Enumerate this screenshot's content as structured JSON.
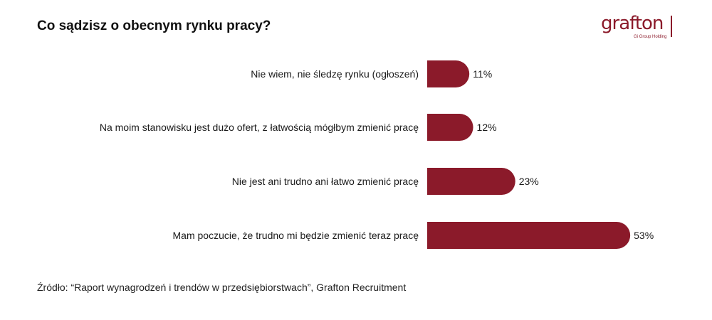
{
  "header": {
    "title": "Co sądzisz o obecnym rynku pracy?"
  },
  "logo": {
    "word": "grafton",
    "sub": "Gi Group Holding"
  },
  "colors": {
    "bar": "#8b1a2a",
    "label": "#1a1a1a"
  },
  "chart_data": {
    "type": "bar",
    "orientation": "horizontal",
    "categories": [
      "Nie wiem, nie śledzę rynku (ogłoszeń)",
      "Na moim stanowisku jest dużo ofert, z łatwością mógłbym zmienić pracę",
      "Nie jest ani trudno ani łatwo zmienić pracę",
      "Mam poczucie, że trudno mi będzie zmienić teraz pracę"
    ],
    "values": [
      11,
      12,
      23,
      53
    ],
    "data_labels": [
      "11%",
      "12%",
      "23%",
      "53%"
    ],
    "unit": "%",
    "grid": false,
    "legend": "none"
  },
  "footer": {
    "source": "Źródło: “Raport wynagrodzeń i trendów w przedsiębiorstwach”,  Grafton Recruitment"
  }
}
